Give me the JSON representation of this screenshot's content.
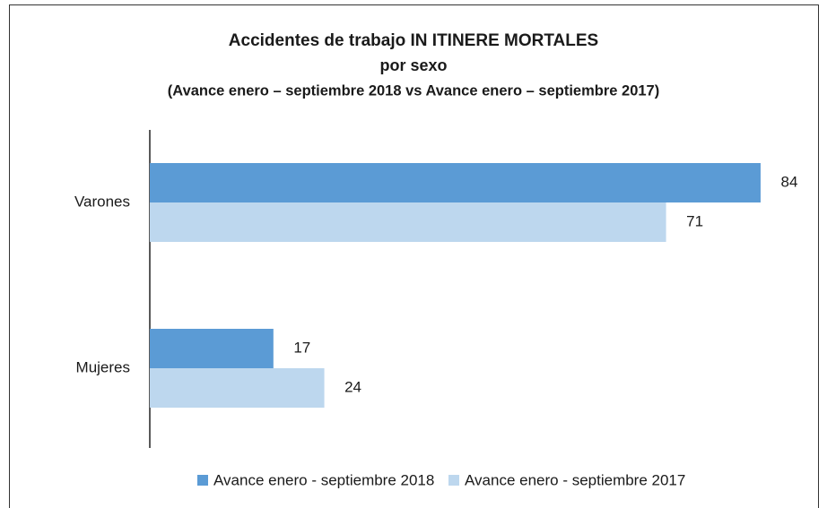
{
  "chart_data": {
    "type": "hbar",
    "title_lines": [
      "Accidentes de trabajo IN ITINERE MORTALES",
      "por sexo",
      "(Avance enero – septiembre 2018 vs Avance enero – septiembre 2017)"
    ],
    "categories": [
      "Varones",
      "Mujeres"
    ],
    "series": [
      {
        "name": "Avance enero - septiembre 2018",
        "color": "#5b9bd5",
        "values": [
          84,
          17
        ]
      },
      {
        "name": "Avance enero - septiembre 2017",
        "color": "#bdd7ee",
        "values": [
          71,
          24
        ]
      }
    ],
    "xlim": [
      0,
      90
    ]
  }
}
